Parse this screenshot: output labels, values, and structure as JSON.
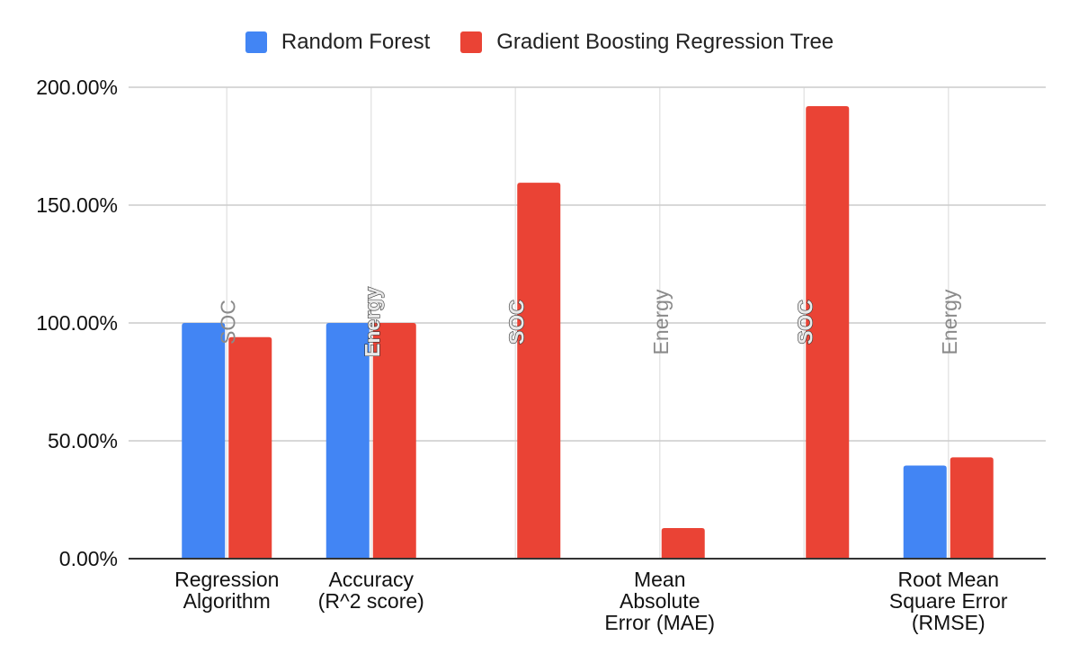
{
  "chart_data": {
    "type": "bar",
    "title": "",
    "xlabel": "",
    "ylabel": "",
    "ylim": [
      0,
      200
    ],
    "y_ticks": [
      "0.00%",
      "50.00%",
      "100.00%",
      "150.00%",
      "200.00%"
    ],
    "y_tick_values": [
      0,
      50,
      100,
      150,
      200
    ],
    "grid": true,
    "legend_position": "top",
    "groups": [
      {
        "label": [
          "Regression",
          "Algorithm"
        ],
        "random_forest": 100,
        "gbrt": 94,
        "marker": "SOC",
        "marker_style": "plain"
      },
      {
        "label": [
          "Accuracy",
          "(R^2 score)"
        ],
        "random_forest": 100,
        "gbrt": 100,
        "marker": "Energy",
        "marker_style": "outlined"
      },
      {
        "label": [],
        "random_forest": null,
        "gbrt": 159.5,
        "marker": "SOC",
        "marker_style": "outlined"
      },
      {
        "label": [
          "Mean",
          "Absolute",
          "Error (MAE)"
        ],
        "random_forest": null,
        "gbrt": 13,
        "marker": "Energy",
        "marker_style": "plain"
      },
      {
        "label": [],
        "random_forest": null,
        "gbrt": 192,
        "marker": "SOC",
        "marker_style": "outlined"
      },
      {
        "label": [
          "Root Mean",
          "Square Error",
          "(RMSE)"
        ],
        "random_forest": 39.5,
        "gbrt": 43,
        "marker": "Energy",
        "marker_style": "plain"
      }
    ],
    "series": [
      {
        "key": "random_forest",
        "name": "Random Forest",
        "color": "#4285f4"
      },
      {
        "key": "gbrt",
        "name": "Gradient Boosting Regression Tree",
        "color": "#ea4335"
      }
    ]
  },
  "colors": {
    "grid": "#cccccc",
    "vertical_grid": "#e6e6e6",
    "axis": "#333333",
    "marker_text": "#8a8a8a",
    "tick_text": "#111111"
  }
}
